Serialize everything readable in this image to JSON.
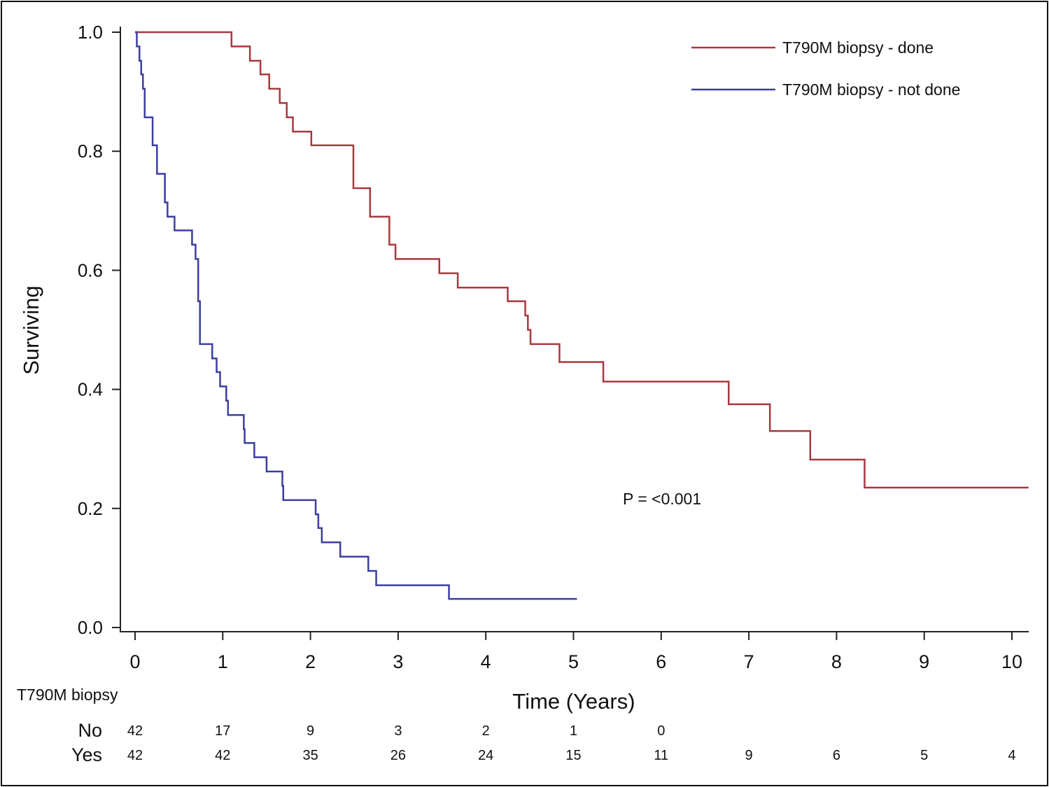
{
  "chart_data": {
    "type": "line",
    "subtype": "kaplan-meier-step",
    "xlabel": "Time (Years)",
    "ylabel": "Surviving",
    "xlim": [
      0,
      10.2
    ],
    "ylim": [
      0,
      1.0
    ],
    "xticks": [
      "0",
      "1",
      "2",
      "3",
      "4",
      "5",
      "6",
      "7",
      "8",
      "9",
      "10"
    ],
    "yticks": [
      "0.0",
      "0.2",
      "0.4",
      "0.6",
      "0.8",
      "1.0"
    ],
    "grid": false,
    "legend_position": "top-right",
    "annotation": "P = <0.001",
    "series": [
      {
        "name": "T790M biopsy - done",
        "color": "#a8383f",
        "end_time": 10.19,
        "steps": [
          [
            0,
            1.0
          ],
          [
            1.1,
            0.976
          ],
          [
            1.31,
            0.952
          ],
          [
            1.43,
            0.929
          ],
          [
            1.53,
            0.905
          ],
          [
            1.65,
            0.881
          ],
          [
            1.73,
            0.857
          ],
          [
            1.8,
            0.833
          ],
          [
            2.01,
            0.81
          ],
          [
            2.49,
            0.738
          ],
          [
            2.68,
            0.69
          ],
          [
            2.9,
            0.643
          ],
          [
            2.97,
            0.619
          ],
          [
            3.47,
            0.595
          ],
          [
            3.68,
            0.571
          ],
          [
            4.25,
            0.548
          ],
          [
            4.45,
            0.524
          ],
          [
            4.48,
            0.5
          ],
          [
            4.51,
            0.476
          ],
          [
            4.84,
            0.446
          ],
          [
            5.34,
            0.413
          ],
          [
            6.77,
            0.375
          ],
          [
            7.24,
            0.33
          ],
          [
            7.7,
            0.282
          ],
          [
            8.32,
            0.235
          ]
        ]
      },
      {
        "name": "T790M biopsy - not done",
        "color": "#3a3fa0",
        "end_time": 5.04,
        "steps": [
          [
            0,
            1.0
          ],
          [
            0.02,
            0.976
          ],
          [
            0.05,
            0.952
          ],
          [
            0.07,
            0.929
          ],
          [
            0.09,
            0.905
          ],
          [
            0.11,
            0.857
          ],
          [
            0.2,
            0.81
          ],
          [
            0.25,
            0.762
          ],
          [
            0.34,
            0.714
          ],
          [
            0.37,
            0.69
          ],
          [
            0.45,
            0.667
          ],
          [
            0.65,
            0.643
          ],
          [
            0.69,
            0.619
          ],
          [
            0.72,
            0.548
          ],
          [
            0.74,
            0.476
          ],
          [
            0.88,
            0.452
          ],
          [
            0.93,
            0.429
          ],
          [
            0.97,
            0.405
          ],
          [
            1.04,
            0.381
          ],
          [
            1.06,
            0.357
          ],
          [
            1.24,
            0.333
          ],
          [
            1.25,
            0.31
          ],
          [
            1.36,
            0.286
          ],
          [
            1.5,
            0.262
          ],
          [
            1.68,
            0.238
          ],
          [
            1.69,
            0.214
          ],
          [
            2.06,
            0.19
          ],
          [
            2.09,
            0.167
          ],
          [
            2.13,
            0.143
          ],
          [
            2.34,
            0.119
          ],
          [
            2.66,
            0.095
          ],
          [
            2.75,
            0.071
          ],
          [
            3.58,
            0.048
          ]
        ]
      }
    ],
    "risk_table": {
      "title": "T790M biopsy",
      "times": [
        0,
        1,
        2,
        3,
        4,
        5,
        6,
        7,
        8,
        9,
        10
      ],
      "rows": [
        {
          "label": "No",
          "values": [
            "42",
            "17",
            "9",
            "3",
            "2",
            "1",
            "0",
            "",
            "",
            "",
            ""
          ]
        },
        {
          "label": "Yes",
          "values": [
            "42",
            "42",
            "35",
            "26",
            "24",
            "15",
            "11",
            "9",
            "6",
            "5",
            "4"
          ]
        }
      ]
    }
  }
}
